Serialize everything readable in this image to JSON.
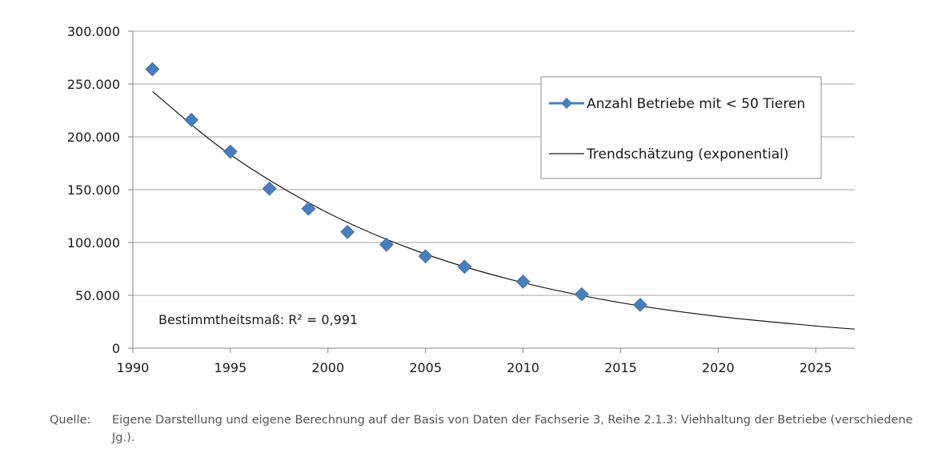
{
  "chart_data": {
    "type": "scatter",
    "title": "",
    "xlabel": "",
    "ylabel": "",
    "xlim": [
      1990,
      2027
    ],
    "ylim": [
      0,
      300000
    ],
    "x_ticks": [
      1990,
      1995,
      2000,
      2005,
      2010,
      2015,
      2020,
      2025
    ],
    "y_ticks": [
      0,
      50000,
      100000,
      150000,
      200000,
      250000,
      300000
    ],
    "x_tick_labels": [
      "1990",
      "1995",
      "2000",
      "2005",
      "2010",
      "2015",
      "2020",
      "2025"
    ],
    "y_tick_labels": [
      "0",
      "50.000",
      "100.000",
      "150.000",
      "200.000",
      "250.000",
      "300.000"
    ],
    "grid": "horizontal",
    "legend_position": "top-right",
    "series": [
      {
        "name": "Anzahl Betriebe mit < 50 Tieren",
        "color": "#4a7ebb",
        "marker": "diamond",
        "x": [
          1991,
          1993,
          1995,
          1997,
          1999,
          2001,
          2003,
          2005,
          2007,
          2010,
          2013,
          2016
        ],
        "y": [
          264000,
          216000,
          186000,
          151000,
          132000,
          110000,
          98000,
          87000,
          77000,
          63000,
          51000,
          41000
        ]
      },
      {
        "name": "Trendschätzung (exponential)",
        "color": "#1a1a1a",
        "type": "line",
        "x": [
          1991,
          1995,
          2000,
          2005,
          2010,
          2015,
          2020,
          2025,
          2027
        ],
        "y": [
          243000,
          183000,
          128000,
          89000,
          62000,
          43000,
          30000,
          21000,
          18000
        ]
      }
    ],
    "annotation": "Bestimmtheitsmaß: R² = 0,991"
  },
  "source": {
    "label": "Quelle:",
    "text": "Eigene Darstellung und eigene Berechnung auf der Basis von Daten der Fachserie 3, Reihe 2.1.3: Viehhaltung der Betriebe (verschiedene Jg.)."
  }
}
